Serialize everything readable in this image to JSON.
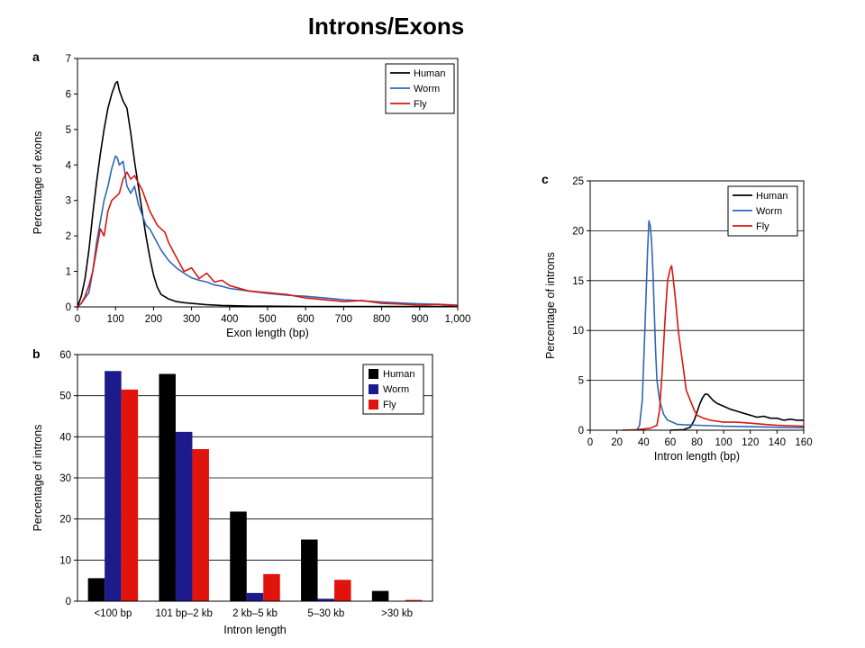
{
  "slide": {
    "title": "Introns/Exons"
  },
  "colors": {
    "human": "#000000",
    "worm": "#2f66b8",
    "fly": "#d8170f",
    "worm_bar": "#1d1a8c",
    "fly_bar": "#e0140c"
  },
  "chart_data": [
    {
      "panel": "a",
      "type": "line",
      "xlabel": "Exon length (bp)",
      "ylabel": "Percentage of exons",
      "xlim": [
        0,
        1000
      ],
      "ylim": [
        0,
        7
      ],
      "x_ticks": [
        0,
        100,
        200,
        300,
        400,
        500,
        600,
        700,
        800,
        900,
        1000
      ],
      "x_tick_labels": [
        "0",
        "100",
        "200",
        "300",
        "400",
        "500",
        "600",
        "700",
        "800",
        "900",
        "1,000"
      ],
      "y_ticks": [
        0,
        1,
        2,
        3,
        4,
        5,
        6,
        7
      ],
      "y_tick_labels": [
        "0",
        "1",
        "2",
        "3",
        "4",
        "5",
        "6",
        "7"
      ],
      "grid": false,
      "legend": "top-right",
      "series": [
        {
          "name": "Human",
          "color_key": "human",
          "x": [
            0,
            10,
            20,
            30,
            40,
            50,
            60,
            70,
            80,
            90,
            100,
            105,
            110,
            120,
            130,
            140,
            150,
            160,
            170,
            180,
            190,
            200,
            210,
            220,
            240,
            260,
            280,
            300,
            340,
            380,
            420,
            460,
            500,
            600,
            700,
            800,
            900,
            1000
          ],
          "y": [
            0,
            0.3,
            0.8,
            1.6,
            2.6,
            3.5,
            4.3,
            5.0,
            5.6,
            6.0,
            6.3,
            6.35,
            6.1,
            5.8,
            5.6,
            4.9,
            4.1,
            3.4,
            2.7,
            2.0,
            1.4,
            0.9,
            0.55,
            0.35,
            0.22,
            0.15,
            0.12,
            0.1,
            0.06,
            0.04,
            0.03,
            0.02,
            0.02,
            0.01,
            0.01,
            0.01,
            0.01,
            0.01
          ]
        },
        {
          "name": "Worm",
          "color_key": "worm",
          "x": [
            0,
            10,
            20,
            30,
            40,
            50,
            60,
            70,
            80,
            90,
            100,
            105,
            110,
            120,
            130,
            140,
            150,
            160,
            170,
            180,
            190,
            200,
            220,
            240,
            260,
            280,
            300,
            320,
            340,
            360,
            380,
            400,
            450,
            500,
            550,
            600,
            650,
            700,
            750,
            800,
            850,
            900,
            950,
            1000
          ],
          "y": [
            0,
            0.1,
            0.25,
            0.4,
            1.0,
            1.8,
            2.4,
            3.0,
            3.4,
            3.9,
            4.25,
            4.2,
            4.0,
            4.1,
            3.4,
            3.2,
            3.4,
            2.9,
            2.6,
            2.3,
            2.2,
            2.0,
            1.6,
            1.3,
            1.1,
            0.95,
            0.82,
            0.75,
            0.7,
            0.62,
            0.58,
            0.52,
            0.45,
            0.38,
            0.33,
            0.3,
            0.25,
            0.2,
            0.17,
            0.14,
            0.11,
            0.09,
            0.07,
            0.05
          ]
        },
        {
          "name": "Fly",
          "color_key": "fly",
          "x": [
            0,
            10,
            20,
            30,
            40,
            50,
            60,
            70,
            80,
            90,
            100,
            110,
            120,
            130,
            140,
            150,
            160,
            170,
            180,
            190,
            200,
            210,
            220,
            230,
            240,
            260,
            280,
            300,
            320,
            340,
            360,
            380,
            400,
            450,
            500,
            550,
            600,
            650,
            700,
            750,
            800,
            850,
            900,
            950,
            1000
          ],
          "y": [
            0,
            0.1,
            0.3,
            0.6,
            1.0,
            1.6,
            2.2,
            2.0,
            2.7,
            3.0,
            3.1,
            3.2,
            3.6,
            3.8,
            3.6,
            3.7,
            3.5,
            3.3,
            3.0,
            2.7,
            2.5,
            2.3,
            2.2,
            2.1,
            1.8,
            1.4,
            1.0,
            1.1,
            0.8,
            0.95,
            0.7,
            0.75,
            0.6,
            0.45,
            0.4,
            0.35,
            0.25,
            0.2,
            0.15,
            0.18,
            0.1,
            0.08,
            0.05,
            0.07,
            0.03
          ]
        }
      ]
    },
    {
      "panel": "b",
      "type": "bar",
      "xlabel": "Intron length",
      "ylabel": "Percentage of introns",
      "ylim": [
        0,
        60
      ],
      "y_ticks": [
        0,
        10,
        20,
        30,
        40,
        50,
        60
      ],
      "y_tick_labels": [
        "0",
        "10",
        "20",
        "30",
        "40",
        "50",
        "60"
      ],
      "grid": true,
      "legend": "top-right",
      "categories": [
        "<100 bp",
        "101 bp–2 kb",
        "2 kb–5 kb",
        "5–30 kb",
        ">30 kb"
      ],
      "series": [
        {
          "name": "Human",
          "color_key": "human",
          "values": [
            5.6,
            55.3,
            21.8,
            15.0,
            2.5
          ]
        },
        {
          "name": "Worm",
          "color_key": "worm_bar",
          "values": [
            56.0,
            41.2,
            2.0,
            0.6,
            0.0
          ]
        },
        {
          "name": "Fly",
          "color_key": "fly_bar",
          "values": [
            51.5,
            37.0,
            6.6,
            5.2,
            0.3
          ]
        }
      ]
    },
    {
      "panel": "c",
      "type": "line",
      "xlabel": "Intron length (bp)",
      "ylabel": "Percentage of introns",
      "xlim": [
        0,
        160
      ],
      "ylim": [
        0,
        25
      ],
      "x_ticks": [
        0,
        20,
        40,
        60,
        80,
        100,
        120,
        140,
        160
      ],
      "x_tick_labels": [
        "0",
        "20",
        "40",
        "60",
        "80",
        "100",
        "120",
        "140",
        "160"
      ],
      "y_ticks": [
        0,
        5,
        10,
        15,
        20,
        25
      ],
      "y_tick_labels": [
        "0",
        "5",
        "10",
        "15",
        "20",
        "25"
      ],
      "grid": true,
      "legend": "top-right",
      "series": [
        {
          "name": "Human",
          "color_key": "human",
          "x": [
            60,
            70,
            75,
            78,
            80,
            82,
            84,
            86,
            88,
            90,
            92,
            95,
            100,
            105,
            110,
            115,
            120,
            125,
            130,
            135,
            140,
            145,
            150,
            155,
            160
          ],
          "y": [
            0,
            0.05,
            0.3,
            1.0,
            1.8,
            2.6,
            3.2,
            3.6,
            3.6,
            3.3,
            3.0,
            2.7,
            2.4,
            2.1,
            1.9,
            1.7,
            1.5,
            1.3,
            1.4,
            1.2,
            1.2,
            1.0,
            1.1,
            1.0,
            1.0
          ]
        },
        {
          "name": "Worm",
          "color_key": "worm",
          "x": [
            35,
            37,
            39,
            41,
            43,
            44,
            45,
            46,
            47,
            48,
            49,
            50,
            52,
            55,
            58,
            60,
            65,
            70,
            80,
            90,
            100,
            120,
            140,
            160
          ],
          "y": [
            0,
            0.5,
            3.0,
            10.0,
            18.0,
            21.0,
            20.5,
            19.0,
            16.0,
            12.0,
            8.0,
            5.0,
            3.0,
            1.6,
            1.0,
            0.9,
            0.6,
            0.55,
            0.5,
            0.45,
            0.4,
            0.35,
            0.3,
            0.25
          ]
        },
        {
          "name": "Fly",
          "color_key": "fly",
          "x": [
            24,
            35,
            45,
            50,
            52,
            54,
            56,
            58,
            60,
            61,
            62,
            64,
            66,
            68,
            70,
            72,
            75,
            78,
            80,
            85,
            90,
            95,
            100,
            110,
            120,
            130,
            140,
            150,
            160
          ],
          "y": [
            0,
            0.05,
            0.2,
            0.5,
            2.0,
            6.0,
            11.0,
            15.0,
            16.2,
            16.5,
            15.5,
            13.0,
            10.0,
            8.0,
            6.0,
            4.0,
            3.0,
            2.0,
            1.5,
            1.2,
            1.0,
            0.9,
            0.8,
            0.8,
            0.7,
            0.6,
            0.5,
            0.45,
            0.4
          ]
        }
      ]
    }
  ]
}
